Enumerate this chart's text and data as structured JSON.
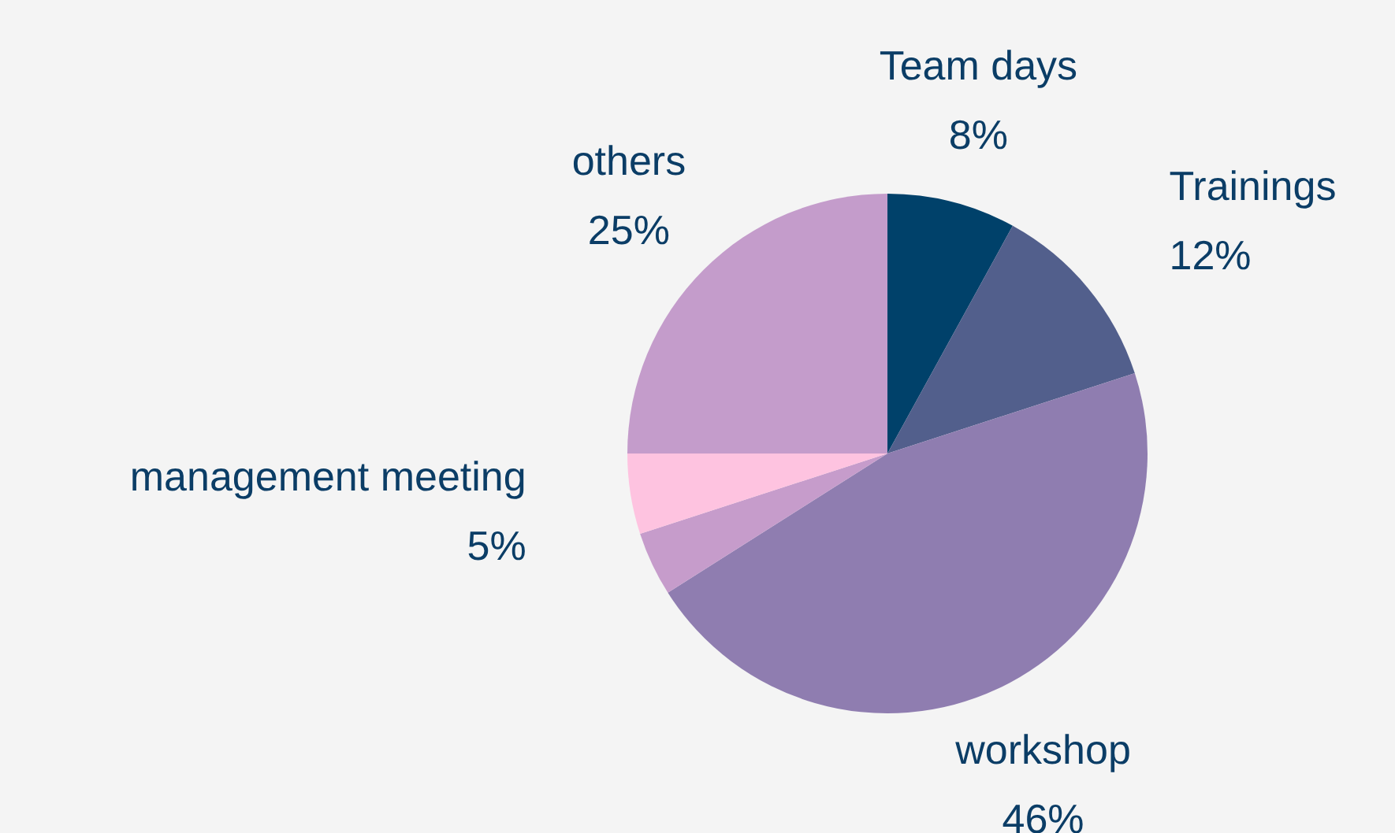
{
  "chart_data": {
    "type": "pie",
    "categories": [
      "Team days",
      "Trainings",
      "workshop",
      null,
      "management meeting",
      "others"
    ],
    "values": [
      8,
      12,
      46,
      4,
      5,
      25
    ],
    "colors": [
      "#00416a",
      "#525f8c",
      "#8f7db0",
      "#c69ccb",
      "#fec3e0",
      "#c49ccb"
    ],
    "value_labels": [
      "8%",
      "12%",
      "46%",
      null,
      "5%",
      "25%"
    ],
    "legend": false
  }
}
